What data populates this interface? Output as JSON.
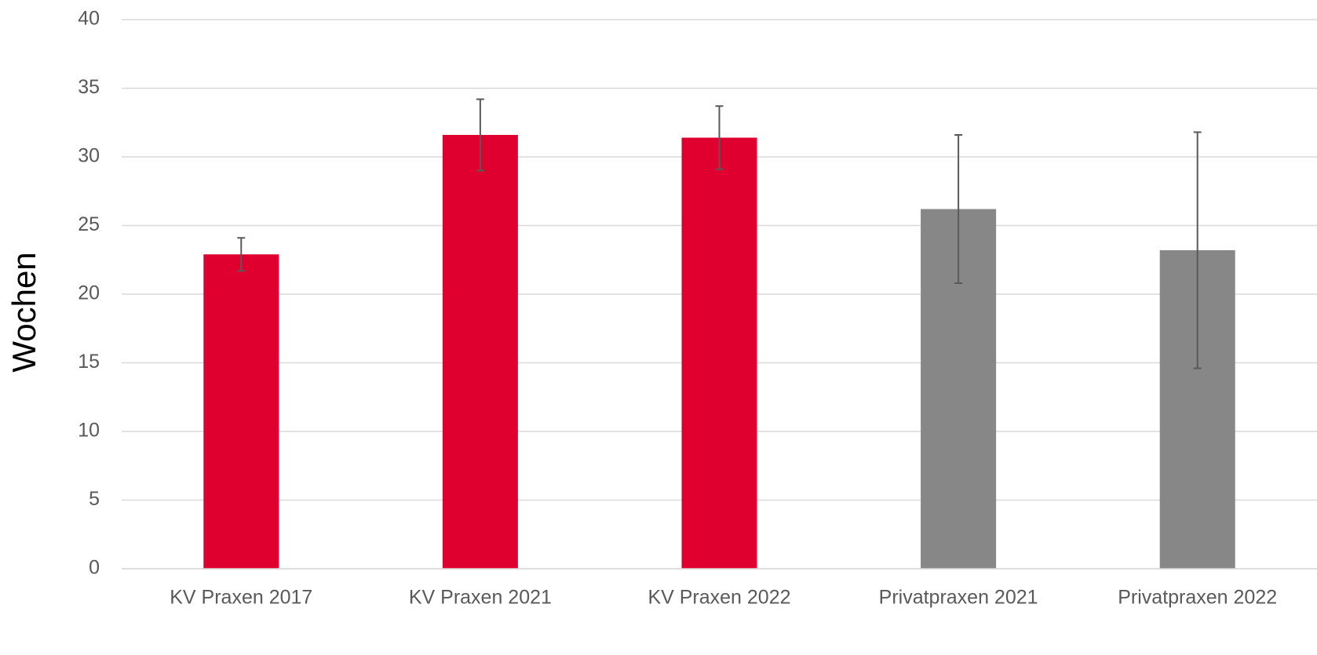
{
  "chart_data": {
    "type": "bar",
    "y_label": "Wochen",
    "categories": [
      "KV Praxen 2017",
      "KV Praxen 2021",
      "KV Praxen 2022",
      "Privatpraxen 2021",
      "Privatpraxen 2022"
    ],
    "values": [
      22.9,
      31.6,
      31.4,
      26.2,
      23.2
    ],
    "errors": [
      1.2,
      2.6,
      2.3,
      5.4,
      8.6
    ],
    "colors": [
      "#e0002f",
      "#e0002f",
      "#e0002f",
      "#878787",
      "#878787"
    ],
    "error_color": "#595959",
    "ylim": [
      0,
      40
    ],
    "yticks": [
      0,
      5,
      10,
      15,
      20,
      25,
      30,
      35,
      40
    ],
    "grid": true
  }
}
